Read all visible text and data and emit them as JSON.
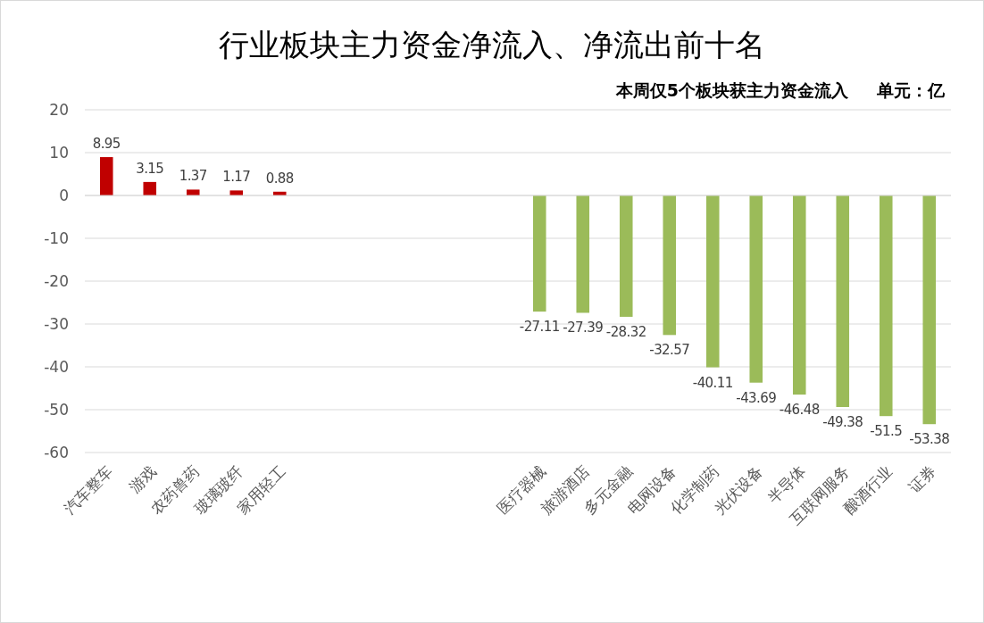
{
  "chart_data": {
    "type": "bar",
    "title": "行业板块主力资金净流入、净流出前十名",
    "annotations": [
      "本周仅5个板块获主力资金流入",
      "单元：亿"
    ],
    "categories": [
      "汽车整车",
      "游戏",
      "农药兽药",
      "玻璃玻纤",
      "家用轻工",
      null,
      null,
      null,
      null,
      null,
      "医疗器械",
      "旅游酒店",
      "多元金融",
      "电网设备",
      "化学制药",
      "光伏设备",
      "半导体",
      "互联网服务",
      "酿酒行业",
      "证券"
    ],
    "values": [
      8.95,
      3.15,
      1.37,
      1.17,
      0.88,
      null,
      null,
      null,
      null,
      null,
      -27.11,
      -27.39,
      -28.32,
      -32.57,
      -40.11,
      -43.69,
      -46.48,
      -49.38,
      -51.5,
      -53.38
    ],
    "colors": [
      "#c00000",
      "#c00000",
      "#c00000",
      "#c00000",
      "#c00000",
      null,
      null,
      null,
      null,
      null,
      "#9bbb59",
      "#9bbb59",
      "#9bbb59",
      "#9bbb59",
      "#9bbb59",
      "#9bbb59",
      "#9bbb59",
      "#9bbb59",
      "#9bbb59",
      "#9bbb59"
    ],
    "ylim": [
      -60,
      20
    ],
    "yticks": [
      -60,
      -50,
      -40,
      -30,
      -20,
      -10,
      0,
      10,
      20
    ],
    "grid": "y",
    "data_labels": true
  }
}
